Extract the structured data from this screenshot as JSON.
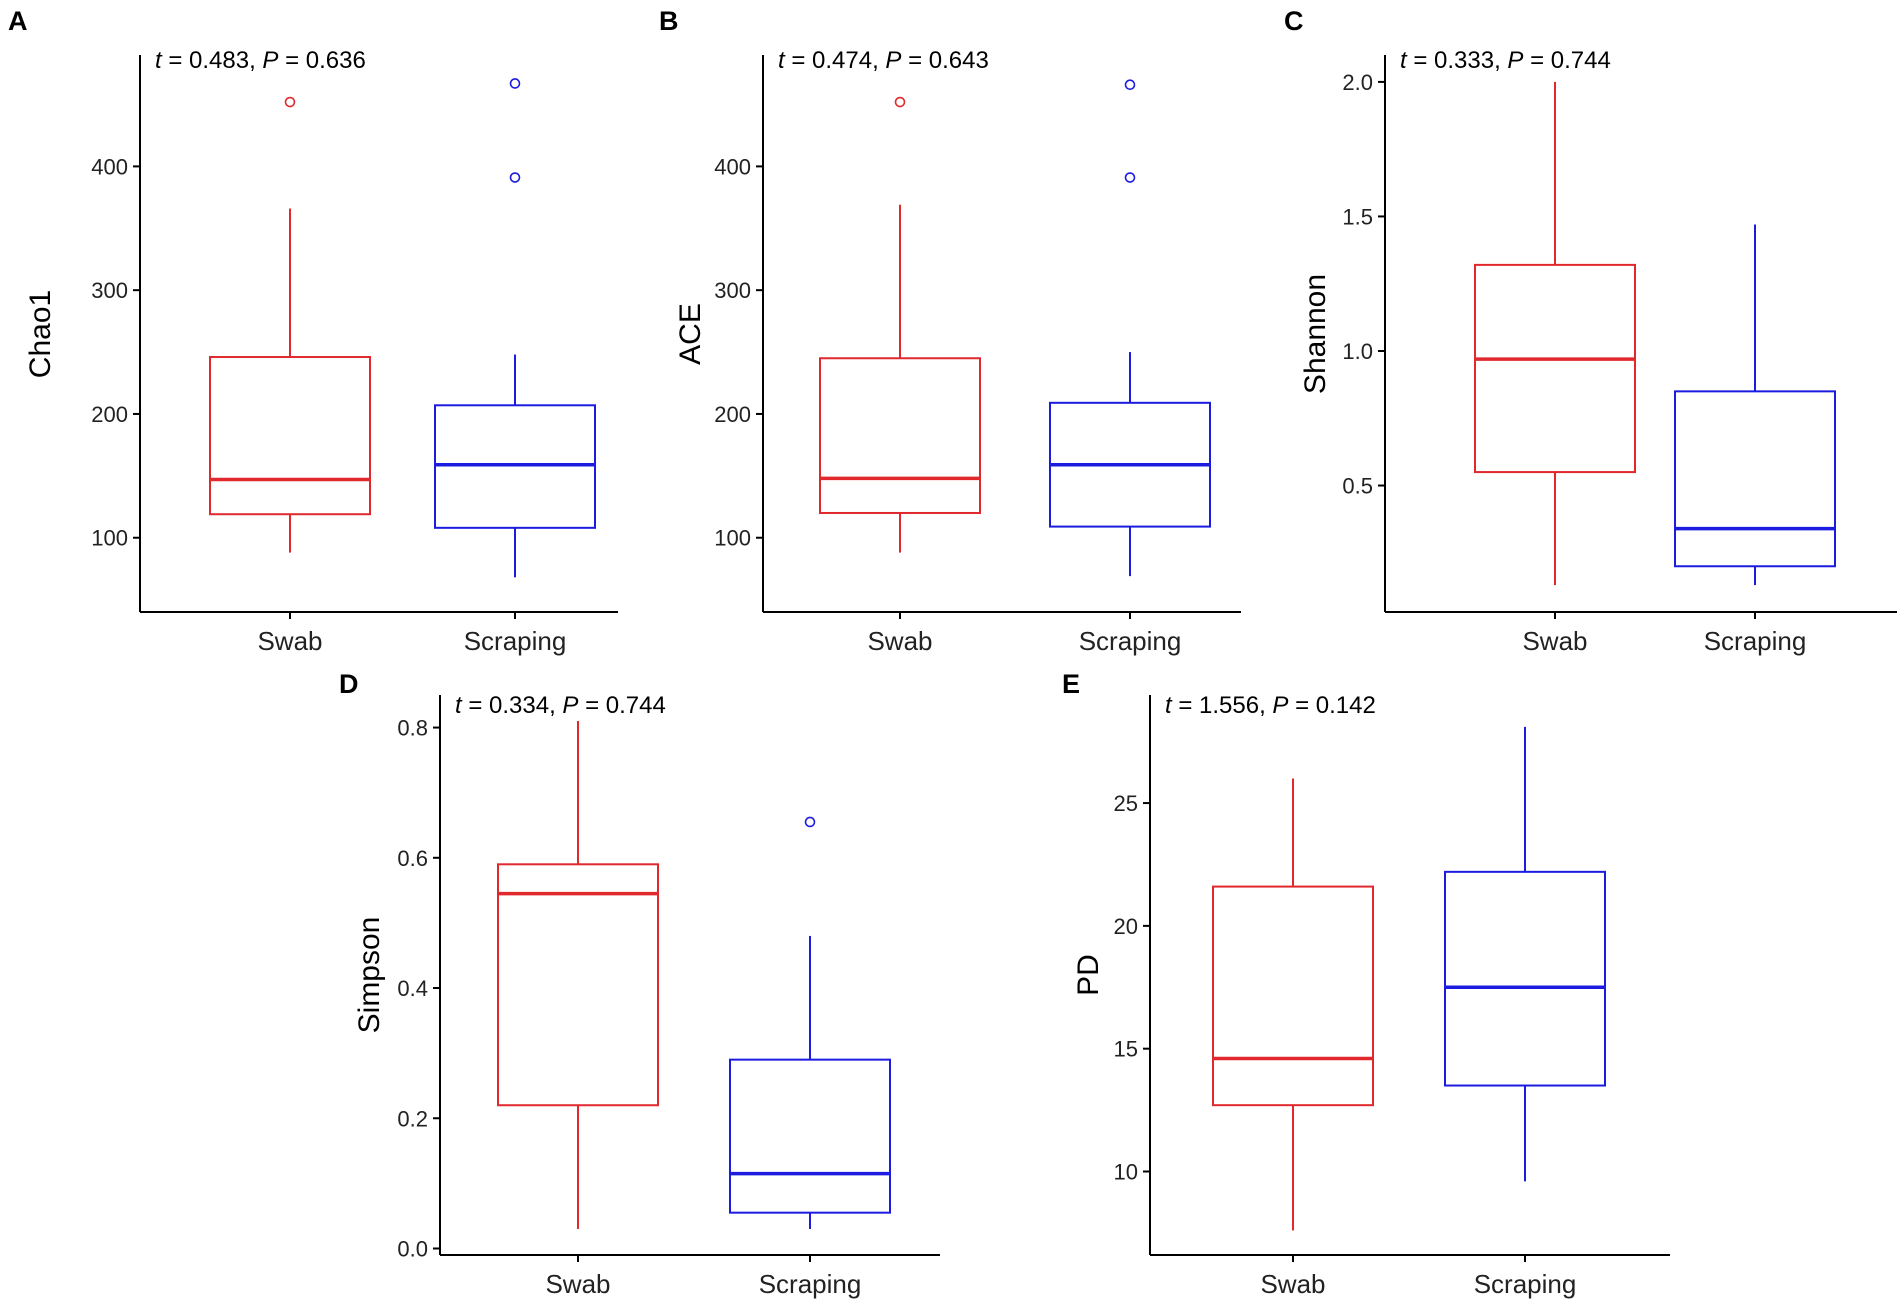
{
  "figure": {
    "group_colors": {
      "Swab": "#e0282d",
      "Scraping": "#1c1ce0"
    }
  },
  "chart_data": [
    {
      "type": "box",
      "panel": "A",
      "ylabel": "Chao1",
      "t_value": "0.483",
      "p_value": "0.636",
      "categories": [
        "Swab",
        "Scraping"
      ],
      "ylim": [
        40,
        490
      ],
      "yticks": [
        100,
        200,
        300,
        400
      ],
      "ytick_labels": [
        "100",
        "200",
        "300",
        "400"
      ],
      "boxes": [
        {
          "group": "Swab",
          "min": 88,
          "q1": 119,
          "median": 147,
          "q3": 246,
          "max": 366,
          "outliers": [
            452
          ]
        },
        {
          "group": "Scraping",
          "min": 68,
          "q1": 108,
          "median": 159,
          "q3": 207,
          "max": 248,
          "outliers": [
            391,
            467
          ]
        }
      ]
    },
    {
      "type": "box",
      "panel": "B",
      "ylabel": "ACE",
      "t_value": "0.474",
      "p_value": "0.643",
      "categories": [
        "Swab",
        "Scraping"
      ],
      "ylim": [
        40,
        490
      ],
      "yticks": [
        100,
        200,
        300,
        400
      ],
      "ytick_labels": [
        "100",
        "200",
        "300",
        "400"
      ],
      "boxes": [
        {
          "group": "Swab",
          "min": 88,
          "q1": 120,
          "median": 148,
          "q3": 245,
          "max": 369,
          "outliers": [
            452
          ]
        },
        {
          "group": "Scraping",
          "min": 69,
          "q1": 109,
          "median": 159,
          "q3": 209,
          "max": 250,
          "outliers": [
            391,
            466
          ]
        }
      ]
    },
    {
      "type": "box",
      "panel": "C",
      "ylabel": "Shannon",
      "t_value": "0.333",
      "p_value": "0.744",
      "categories": [
        "Swab",
        "Scraping"
      ],
      "ylim": [
        0.03,
        2.1
      ],
      "yticks": [
        0.5,
        1.0,
        1.5,
        2.0
      ],
      "ytick_labels": [
        "0.5",
        "1.0",
        "1.5",
        "2.0"
      ],
      "boxes": [
        {
          "group": "Swab",
          "min": 0.13,
          "q1": 0.55,
          "median": 0.97,
          "q3": 1.32,
          "max": 2.0,
          "outliers": []
        },
        {
          "group": "Scraping",
          "min": 0.13,
          "q1": 0.2,
          "median": 0.34,
          "q3": 0.85,
          "max": 1.47,
          "outliers": []
        }
      ]
    },
    {
      "type": "box",
      "panel": "D",
      "ylabel": "Simpson",
      "t_value": "0.334",
      "p_value": "0.744",
      "categories": [
        "Swab",
        "Scraping"
      ],
      "ylim": [
        -0.01,
        0.85
      ],
      "yticks": [
        0.0,
        0.2,
        0.4,
        0.6,
        0.8
      ],
      "ytick_labels": [
        "0.0",
        "0.2",
        "0.4",
        "0.6",
        "0.8"
      ],
      "boxes": [
        {
          "group": "Swab",
          "min": 0.03,
          "q1": 0.22,
          "median": 0.545,
          "q3": 0.59,
          "max": 0.81,
          "outliers": []
        },
        {
          "group": "Scraping",
          "min": 0.03,
          "q1": 0.055,
          "median": 0.115,
          "q3": 0.29,
          "max": 0.48,
          "outliers": [
            0.655
          ]
        }
      ]
    },
    {
      "type": "box",
      "panel": "E",
      "ylabel": "PD",
      "t_value": "1.556",
      "p_value": "0.142",
      "categories": [
        "Swab",
        "Scraping"
      ],
      "ylim": [
        6.6,
        29.4
      ],
      "yticks": [
        10,
        15,
        20,
        25
      ],
      "ytick_labels": [
        "10",
        "15",
        "20",
        "25"
      ],
      "boxes": [
        {
          "group": "Swab",
          "min": 7.6,
          "q1": 12.7,
          "median": 14.6,
          "q3": 21.6,
          "max": 26.0,
          "outliers": []
        },
        {
          "group": "Scraping",
          "min": 9.6,
          "q1": 13.5,
          "median": 17.5,
          "q3": 22.2,
          "max": 28.1,
          "outliers": []
        }
      ]
    }
  ]
}
